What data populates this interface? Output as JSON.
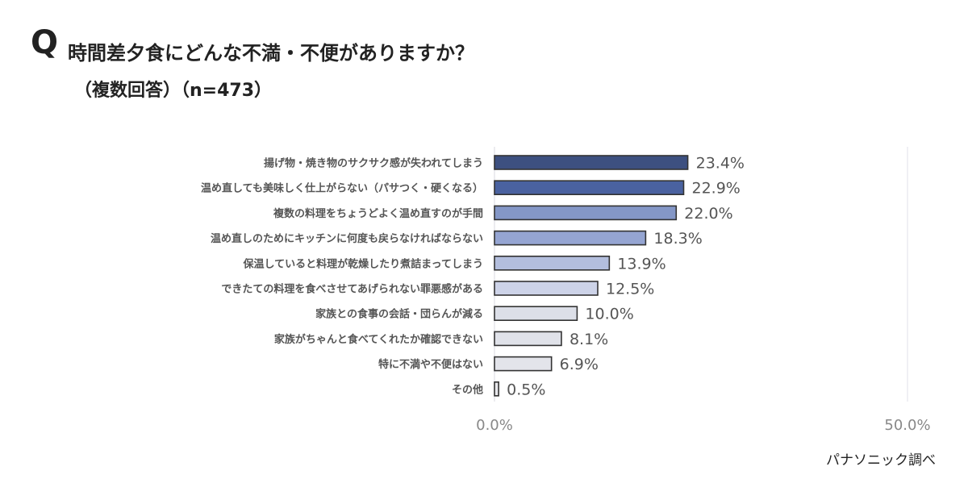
{
  "header": {
    "q_mark": "Q",
    "title": "時間差夕食にどんな不満・不便がありますか？",
    "subtitle": "（複数回答）（n=473）"
  },
  "footer": {
    "source": "パナソニック調べ"
  },
  "chart_data": {
    "type": "bar",
    "orientation": "horizontal",
    "categories": [
      "揚げ物・焼き物のサクサク感が失われてしまう",
      "温め直しても美味しく仕上がらない（パサつく・硬くなる）",
      "複数の料理をちょうどよく温め直すのが手間",
      "温め直しのためにキッチンに何度も戻らなければならない",
      "保温していると料理が乾燥したり煮詰まってしまう",
      "できたての料理を食べさせてあげられない罪悪感がある",
      "家族との食事の会話・団らんが減る",
      "家族がちゃんと食べてくれたか確認できない",
      "特に不満や不便はない",
      "その他"
    ],
    "values": [
      23.4,
      22.9,
      22.0,
      18.3,
      13.9,
      12.5,
      10.0,
      8.1,
      6.9,
      0.5
    ],
    "value_labels": [
      "23.4%",
      "22.9%",
      "22.0%",
      "18.3%",
      "13.9%",
      "12.5%",
      "10.0%",
      "8.1%",
      "6.9%",
      "0.5%"
    ],
    "xlim": [
      0,
      50
    ],
    "tick_labels": [
      "0.0%",
      "50.0%"
    ],
    "colors": [
      "#3d5080",
      "#4a62a0",
      "#8497c7",
      "#95a5d2",
      "#b3bedd",
      "#cdd3e8",
      "#dcdfe8",
      "#e0e2e9",
      "#e3e4ea",
      "#e8e8ec"
    ],
    "bar_stroke": "#333333",
    "grid": false
  }
}
